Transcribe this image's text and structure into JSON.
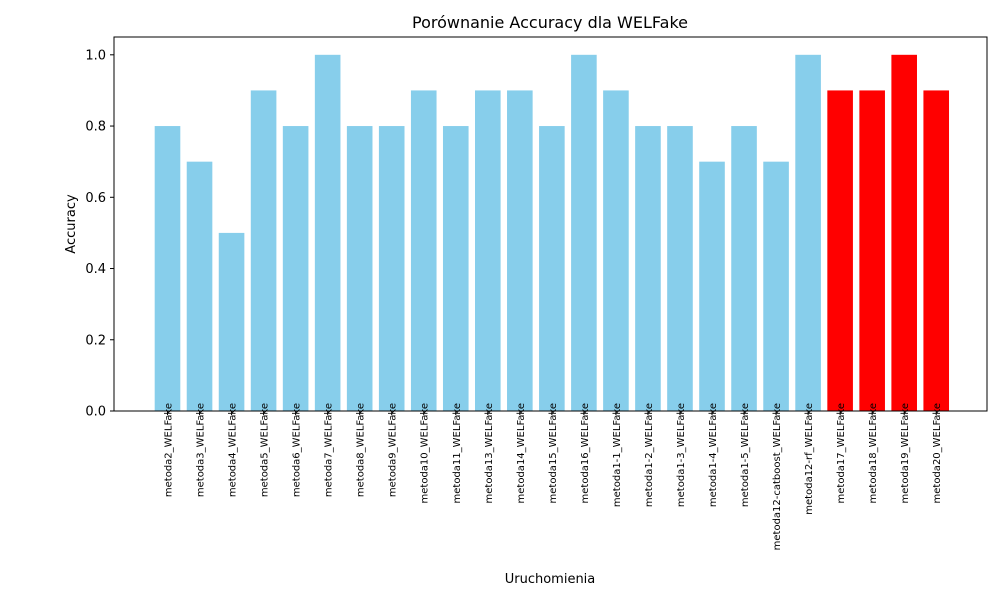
{
  "chart_data": {
    "type": "bar",
    "title": "Porównanie Accuracy dla WELFake",
    "xlabel": "Uruchomienia",
    "ylabel": "Accuracy",
    "ylim": [
      0,
      1.05
    ],
    "yticks": [
      "0.0",
      "0.2",
      "0.4",
      "0.6",
      "0.8",
      "1.0"
    ],
    "grid": false,
    "categories": [
      "metoda2_WELFake",
      "metoda3_WELFake",
      "metoda4_WELFake",
      "metoda5_WELFake",
      "metoda6_WELFake",
      "metoda7_WELFake",
      "metoda8_WELFake",
      "metoda9_WELFake",
      "metoda10_WELFake",
      "metoda11_WELFake",
      "metoda13_WELFake",
      "metoda14_WELFake",
      "metoda15_WELFake",
      "metoda16_WELFake",
      "metoda1-1_WELFake",
      "metoda1-2_WELFake",
      "metoda1-3_WELFake",
      "metoda1-4_WELFake",
      "metoda1-5_WELFake",
      "metoda12-catboost_WELFake",
      "metoda12-rf_WELFake",
      "metoda17_WELFake",
      "metoda18_WELFake",
      "metoda19_WELFake",
      "metoda20_WELFake"
    ],
    "values": [
      0.8,
      0.7,
      0.5,
      0.9,
      0.8,
      1.0,
      0.8,
      0.8,
      0.9,
      0.8,
      0.9,
      0.9,
      0.8,
      1.0,
      0.9,
      0.8,
      0.8,
      0.7,
      0.8,
      0.7,
      1.0,
      0.9,
      0.9,
      1.0,
      0.9
    ],
    "bar_colors": [
      "#87ceeb",
      "#87ceeb",
      "#87ceeb",
      "#87ceeb",
      "#87ceeb",
      "#87ceeb",
      "#87ceeb",
      "#87ceeb",
      "#87ceeb",
      "#87ceeb",
      "#87ceeb",
      "#87ceeb",
      "#87ceeb",
      "#87ceeb",
      "#87ceeb",
      "#87ceeb",
      "#87ceeb",
      "#87ceeb",
      "#87ceeb",
      "#87ceeb",
      "#87ceeb",
      "#ff0000",
      "#ff0000",
      "#ff0000",
      "#ff0000"
    ]
  }
}
